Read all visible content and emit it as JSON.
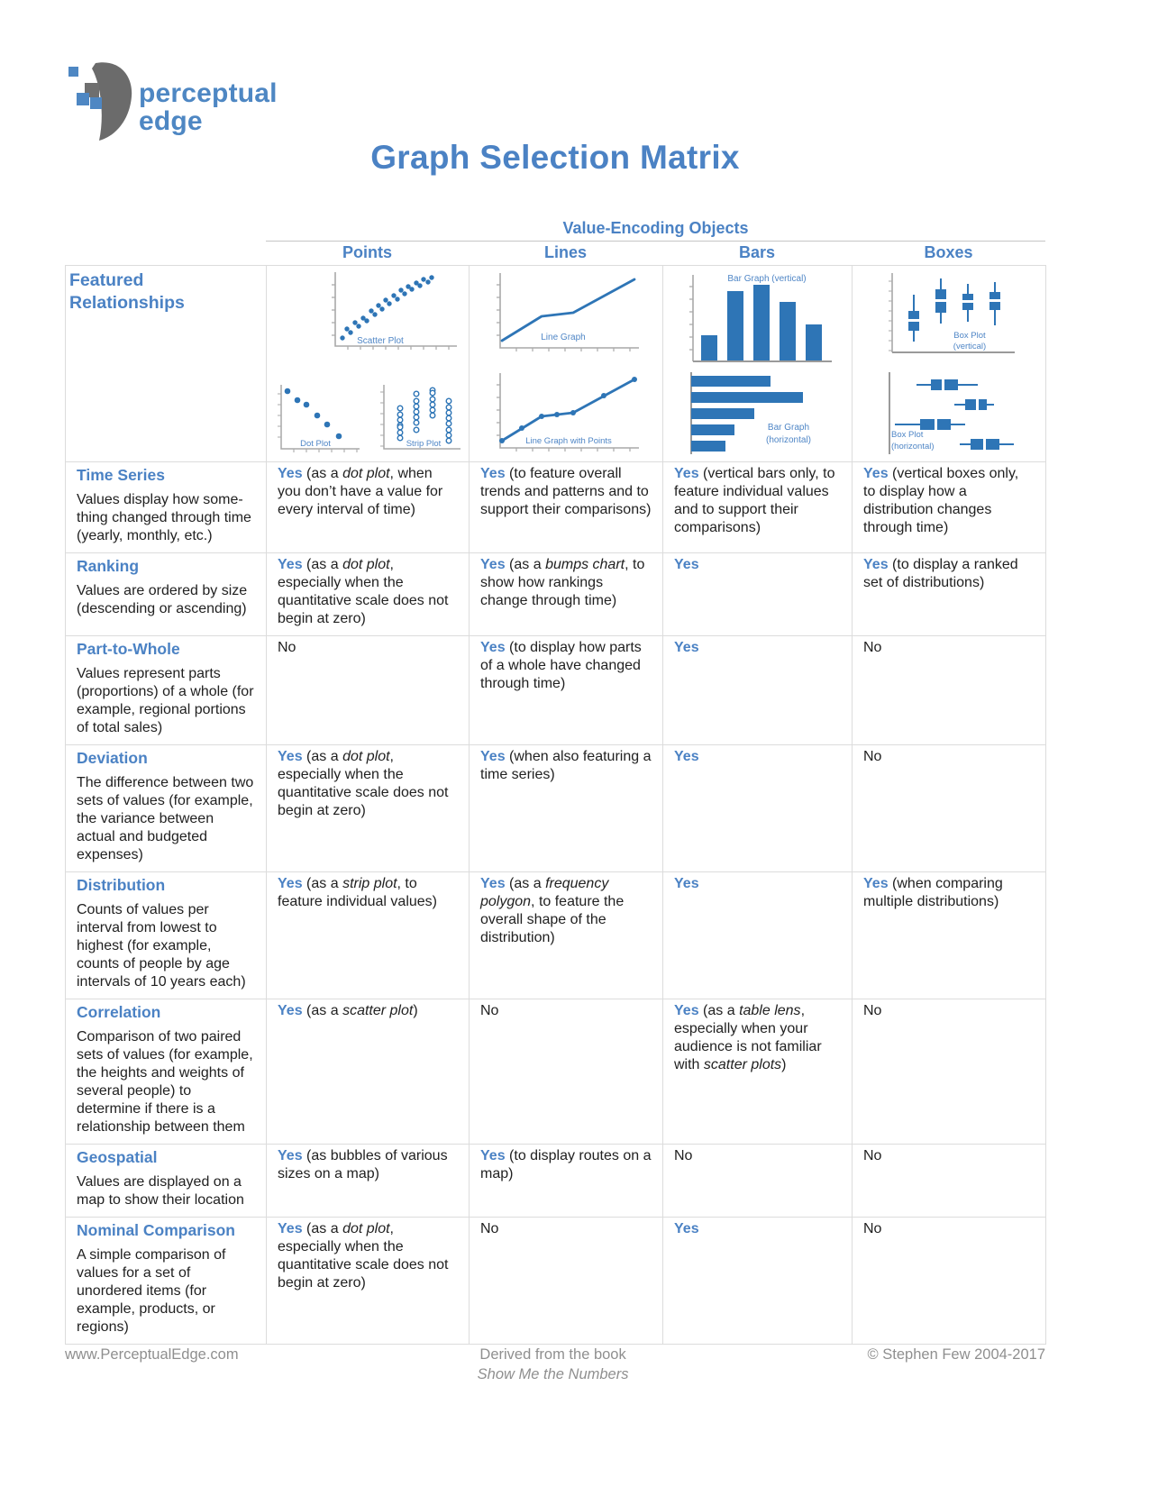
{
  "logo": {
    "line1": "perceptual",
    "line2": "edge"
  },
  "title": "Graph Selection Matrix",
  "colors": {
    "accent": "#4b82c4",
    "chart": "#2e75b6",
    "chart_label": "#4f86c6",
    "axis": "#a9a9a9"
  },
  "table": {
    "group_header": "Value-Encoding Objects",
    "row_axis_label": "Featured Relationships",
    "columns": [
      "Points",
      "Lines",
      "Bars",
      "Boxes"
    ],
    "thumbnails": {
      "scatter": "Scatter Plot",
      "dot": "Dot Plot",
      "strip": "Strip Plot",
      "line": "Line Graph",
      "line_points": "Line Graph with Points",
      "bar_v": "Bar Graph (vertical)",
      "bar_h_1": "Bar Graph",
      "bar_h_2": "(horizontal)",
      "box_v_1": "Box Plot",
      "box_v_2": "(vertical)",
      "box_h_1": "Box Plot",
      "box_h_2": "(horizontal)"
    },
    "rows": [
      {
        "heading": "Time Series",
        "description": "Values display how some­thing changed through time (yearly, monthly, etc.)",
        "cells": [
          [
            [
              "Yes",
              "y"
            ],
            [
              " (as a ",
              ""
            ],
            [
              "dot plot",
              "i"
            ],
            [
              ", when you don’t have a value for every interval of time)",
              ""
            ]
          ],
          [
            [
              "Yes",
              "y"
            ],
            [
              " (to feature overall trends and patterns and to support their comparisons)",
              ""
            ]
          ],
          [
            [
              "Yes",
              "y"
            ],
            [
              " (vertical bars only, to feature individual values and to support their comparisons)",
              ""
            ]
          ],
          [
            [
              "Yes",
              "y"
            ],
            [
              " (vertical boxes only, to display how a distribution changes through time)",
              ""
            ]
          ]
        ]
      },
      {
        "heading": "Ranking",
        "description": "Values are ordered by size (descending or ascending)",
        "cells": [
          [
            [
              "Yes",
              "y"
            ],
            [
              " (as a ",
              ""
            ],
            [
              "dot plot",
              "i"
            ],
            [
              ", especially when the quantitative scale does not begin at zero)",
              ""
            ]
          ],
          [
            [
              "Yes",
              "y"
            ],
            [
              " (as a ",
              ""
            ],
            [
              "bumps chart",
              "i"
            ],
            [
              ", to show how rankings change through time)",
              ""
            ]
          ],
          [
            [
              "Yes",
              "y"
            ]
          ],
          [
            [
              "Yes",
              "y"
            ],
            [
              " (to display a ranked set of distributions)",
              ""
            ]
          ]
        ]
      },
      {
        "heading": "Part-to-Whole",
        "description": "Values represent parts (proportions) of a whole (for example, regional portions of total sales)",
        "cells": [
          [
            [
              "No",
              ""
            ]
          ],
          [
            [
              "Yes",
              "y"
            ],
            [
              " (to display how parts of a whole have changed through time)",
              ""
            ]
          ],
          [
            [
              "Yes",
              "y"
            ]
          ],
          [
            [
              "No",
              ""
            ]
          ]
        ]
      },
      {
        "heading": "Deviation",
        "description": "The difference between two sets of values (for example, the variance between actual and budgeted expenses)",
        "cells": [
          [
            [
              "Yes",
              "y"
            ],
            [
              " (as a ",
              ""
            ],
            [
              "dot plot",
              "i"
            ],
            [
              ", especially when the quantitative scale does not begin at zero)",
              ""
            ]
          ],
          [
            [
              "Yes",
              "y"
            ],
            [
              " (when also featuring a time series)",
              ""
            ]
          ],
          [
            [
              "Yes",
              "y"
            ]
          ],
          [
            [
              "No",
              ""
            ]
          ]
        ]
      },
      {
        "heading": "Distribution",
        "description": "Counts of values per interval from lowest to highest  (for example, counts of people by age intervals of 10 years each)",
        "cells": [
          [
            [
              "Yes",
              "y"
            ],
            [
              " (as a ",
              ""
            ],
            [
              "strip plot",
              "i"
            ],
            [
              ", to feature individual values)",
              ""
            ]
          ],
          [
            [
              "Yes",
              "y"
            ],
            [
              " (as a ",
              ""
            ],
            [
              "frequency polygon",
              "i"
            ],
            [
              ", to feature the overall shape of the distribution)",
              ""
            ]
          ],
          [
            [
              "Yes",
              "y"
            ]
          ],
          [
            [
              "Yes",
              "y"
            ],
            [
              " (when comparing multiple distributions)",
              ""
            ]
          ]
        ]
      },
      {
        "heading": "Correlation",
        "description": "Comparison of two paired sets of values (for example, the heights and weights of several people) to determine if there is a relationship between them",
        "cells": [
          [
            [
              "Yes",
              "y"
            ],
            [
              " (as a ",
              ""
            ],
            [
              "scatter plot",
              "i"
            ],
            [
              ")",
              ""
            ]
          ],
          [
            [
              "No",
              ""
            ]
          ],
          [
            [
              "Yes",
              "y"
            ],
            [
              " (as a ",
              ""
            ],
            [
              "table lens",
              "i"
            ],
            [
              ", especially when your audience is not familiar with ",
              ""
            ],
            [
              "scatter plots",
              "i"
            ],
            [
              ")",
              ""
            ]
          ],
          [
            [
              "No",
              ""
            ]
          ]
        ]
      },
      {
        "heading": "Geospatial",
        "description": "Values are displayed on a map to show their location",
        "cells": [
          [
            [
              "Yes",
              "y"
            ],
            [
              " (as bubbles of various sizes on a map)",
              ""
            ]
          ],
          [
            [
              "Yes",
              "y"
            ],
            [
              " (to display routes on a map)",
              ""
            ]
          ],
          [
            [
              "No",
              ""
            ]
          ],
          [
            [
              "No",
              ""
            ]
          ]
        ]
      },
      {
        "heading": "Nominal Comparison",
        "description": "A simple comparison of values for a set of unordered items (for example, products, or regions)",
        "cells": [
          [
            [
              "Yes",
              "y"
            ],
            [
              " (as a ",
              ""
            ],
            [
              "dot plot",
              "i"
            ],
            [
              ", especially when the quantitative scale does not begin at zero)",
              ""
            ]
          ],
          [
            [
              "No",
              ""
            ]
          ],
          [
            [
              "Yes",
              "y"
            ]
          ],
          [
            [
              "No",
              ""
            ]
          ]
        ]
      }
    ]
  },
  "footer": {
    "left": "www.PerceptualEdge.com",
    "center_line1": "Derived from the book",
    "center_line2": "Show Me the Numbers",
    "right": "© Stephen Few 2004-2017"
  }
}
